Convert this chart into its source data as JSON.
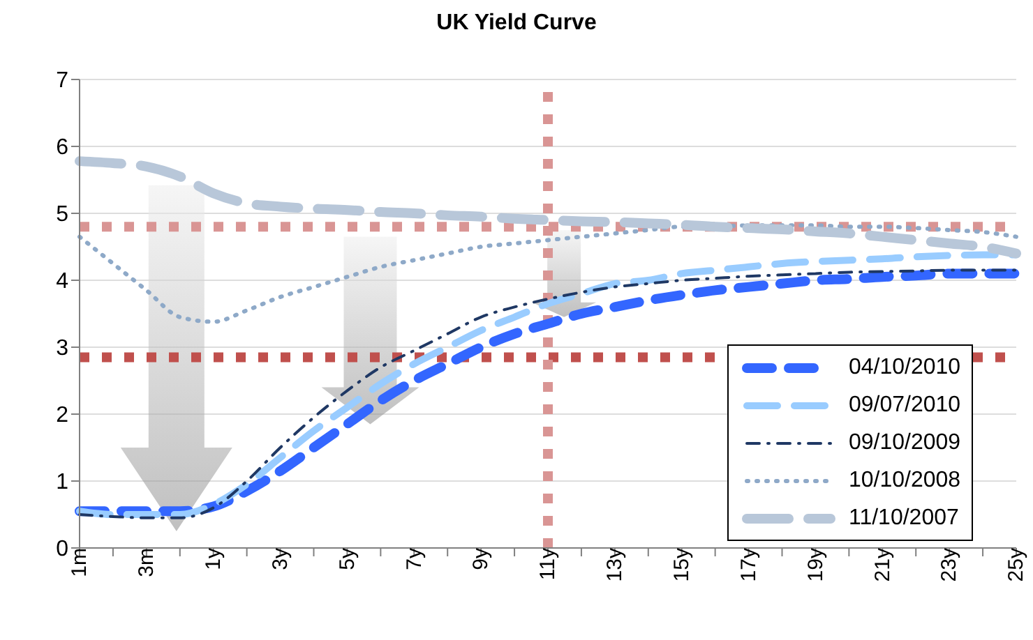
{
  "chart_data": {
    "type": "line",
    "title": "UK Yield Curve",
    "categories": [
      "1m",
      null,
      "3m",
      null,
      "1y",
      null,
      "3y",
      null,
      "5y",
      null,
      "7y",
      null,
      "9y",
      null,
      "11y",
      null,
      "13y",
      null,
      "15y",
      null,
      "17y",
      null,
      "19y",
      null,
      "21y",
      null,
      "23y",
      null,
      "25y"
    ],
    "series": [
      {
        "name": "04/10/2010",
        "color": "#3366ff",
        "line_style": "dashed",
        "values": [
          0.55,
          0.55,
          0.55,
          0.55,
          0.62,
          0.85,
          1.15,
          1.5,
          1.85,
          2.2,
          2.5,
          2.75,
          3.0,
          3.2,
          3.35,
          3.5,
          3.6,
          3.7,
          3.78,
          3.85,
          3.9,
          3.95,
          4.0,
          4.02,
          4.05,
          4.07,
          4.1,
          4.1,
          4.1
        ]
      },
      {
        "name": "09/07/2010",
        "color": "#99ccff",
        "line_style": "dashed",
        "values": [
          0.55,
          0.5,
          0.5,
          0.5,
          0.65,
          0.95,
          1.35,
          1.75,
          2.1,
          2.45,
          2.75,
          3.0,
          3.25,
          3.45,
          3.65,
          3.8,
          3.95,
          4.0,
          4.1,
          4.15,
          4.2,
          4.25,
          4.28,
          4.3,
          4.32,
          4.35,
          4.37,
          4.38,
          4.38
        ]
      },
      {
        "name": "09/10/2009",
        "color": "#1f3864",
        "line_style": "dashed",
        "values": [
          0.5,
          0.47,
          0.45,
          0.45,
          0.6,
          1.0,
          1.5,
          1.95,
          2.35,
          2.7,
          2.95,
          3.2,
          3.45,
          3.6,
          3.72,
          3.82,
          3.9,
          3.95,
          4.0,
          4.03,
          4.06,
          4.08,
          4.1,
          4.12,
          4.13,
          4.14,
          4.15,
          4.15,
          4.15
        ]
      },
      {
        "name": "10/10/2008",
        "color": "#8ea9c8",
        "line_style": "dotted",
        "values": [
          4.65,
          4.25,
          3.85,
          3.45,
          3.38,
          3.55,
          3.75,
          3.9,
          4.05,
          4.2,
          4.3,
          4.4,
          4.5,
          4.55,
          4.6,
          4.65,
          4.7,
          4.75,
          4.8,
          4.8,
          4.82,
          4.82,
          4.82,
          4.8,
          4.8,
          4.78,
          4.75,
          4.72,
          4.65
        ]
      },
      {
        "name": "11/10/2007",
        "color": "#b8c7d9",
        "line_style": "dashed",
        "values": [
          5.78,
          5.75,
          5.7,
          5.55,
          5.3,
          5.15,
          5.1,
          5.07,
          5.05,
          5.02,
          5.0,
          4.97,
          4.95,
          4.92,
          4.9,
          4.88,
          4.87,
          4.85,
          4.83,
          4.8,
          4.78,
          4.76,
          4.73,
          4.7,
          4.65,
          4.6,
          4.55,
          4.5,
          4.4
        ]
      }
    ],
    "ylim": [
      0,
      7
    ],
    "yticks": [
      0,
      1,
      2,
      3,
      4,
      5,
      6,
      7
    ],
    "grid": "y",
    "legend": "bottom right",
    "marker": "none",
    "ref_lines": [
      {
        "axis": "y",
        "value": 4.8,
        "color": "#d99594",
        "line_style": "dotted"
      },
      {
        "axis": "y",
        "value": 2.85,
        "color": "#c0504d",
        "line_style": "dotted"
      },
      {
        "axis": "x",
        "value": "11y",
        "color": "#d99594",
        "line_style": "dotted"
      }
    ]
  }
}
